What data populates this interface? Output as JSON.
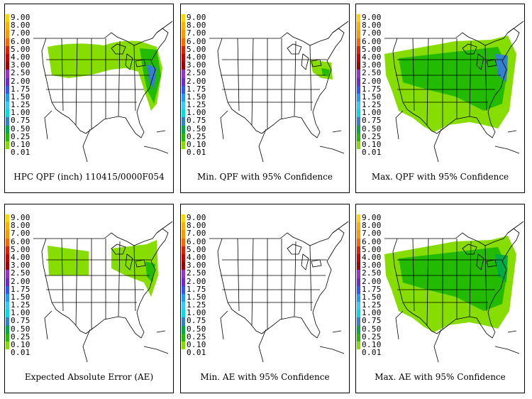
{
  "legend": {
    "levels": [
      {
        "label": "9.00",
        "color": "#ffd700"
      },
      {
        "label": "8.00",
        "color": "#ffb000"
      },
      {
        "label": "7.00",
        "color": "#ff9900"
      },
      {
        "label": "6.00",
        "color": "#ff6600"
      },
      {
        "label": "5.00",
        "color": "#e02000"
      },
      {
        "label": "4.00",
        "color": "#c80000"
      },
      {
        "label": "3.00",
        "color": "#a00000"
      },
      {
        "label": "2.50",
        "color": "#9933cc"
      },
      {
        "label": "2.00",
        "color": "#6a2bd0"
      },
      {
        "label": "1.75",
        "color": "#3355ff"
      },
      {
        "label": "1.50",
        "color": "#2299ff"
      },
      {
        "label": "1.25",
        "color": "#33ccff"
      },
      {
        "label": "1.00",
        "color": "#00dddd"
      },
      {
        "label": "0.75",
        "color": "#3380cc"
      },
      {
        "label": "0.50",
        "color": "#00aa44"
      },
      {
        "label": "0.25",
        "color": "#22bb00"
      },
      {
        "label": "0.10",
        "color": "#88dd00"
      },
      {
        "label": "0.01",
        "color": "#ffffff"
      }
    ]
  },
  "panels": [
    {
      "title": "HPC QPF (inch) 110415/0000F054",
      "coverage": "qpf"
    },
    {
      "title": "Min. QPF with 95% Confidence",
      "coverage": "min_qpf"
    },
    {
      "title": "Max. QPF with 95% Confidence",
      "coverage": "max_qpf"
    },
    {
      "title": "Expected Absolute Error (AE)",
      "coverage": "ae"
    },
    {
      "title": "Min. AE with 95% Confidence",
      "coverage": "min_ae"
    },
    {
      "title": "Max. AE with 95% Confidence",
      "coverage": "max_ae"
    }
  ],
  "colors": {
    "light_green": "#88dd00",
    "green": "#22bb00",
    "dark_green": "#00aa44",
    "blue": "#3380cc",
    "border": "#000000"
  }
}
